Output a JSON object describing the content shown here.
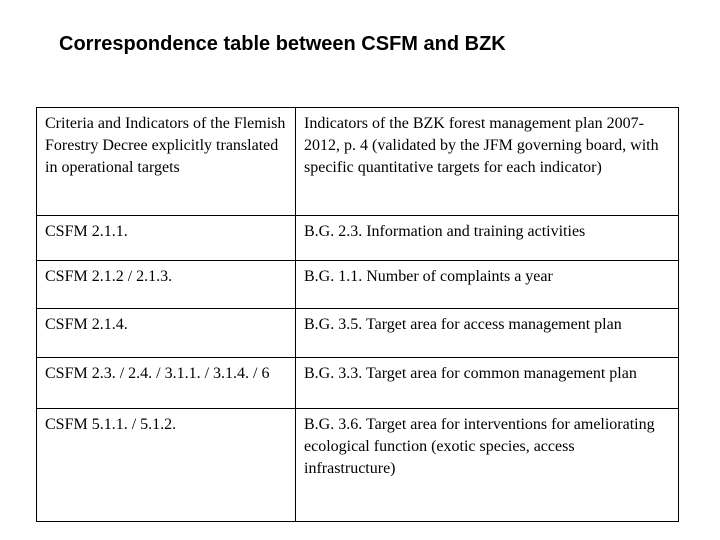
{
  "slide": {
    "title": "Correspondence table between CSFM and BZK"
  },
  "table": {
    "headers": [
      "Criteria and Indicators of the Flemish Forestry Decree explicitly translated in operational targets",
      "Indicators of the BZK forest management plan 2007-2012, p. 4 (validated by the JFM governing board, with specific quantitative targets for each indicator)"
    ],
    "rows": [
      {
        "csfm": "CSFM 2.1.1.",
        "bzk": "B.G. 2.3. Information and training activities"
      },
      {
        "csfm": "CSFM 2.1.2 / 2.1.3.",
        "bzk": "B.G. 1.1. Number of complaints a year"
      },
      {
        "csfm": "CSFM 2.1.4.",
        "bzk": "B.G. 3.5. Target area for access management plan"
      },
      {
        "csfm": "CSFM 2.3. / 2.4. / 3.1.1. / 3.1.4. / 6",
        "bzk": "B.G. 3.3. Target area for common management plan"
      },
      {
        "csfm": "CSFM 5.1.1. / 5.1.2.",
        "bzk": "B.G. 3.6. Target area for interventions for ameliorating ecological function (exotic species, access infrastructure)"
      }
    ]
  },
  "colors": {
    "background": "#ffffff",
    "text": "#000000",
    "border": "#000000"
  }
}
